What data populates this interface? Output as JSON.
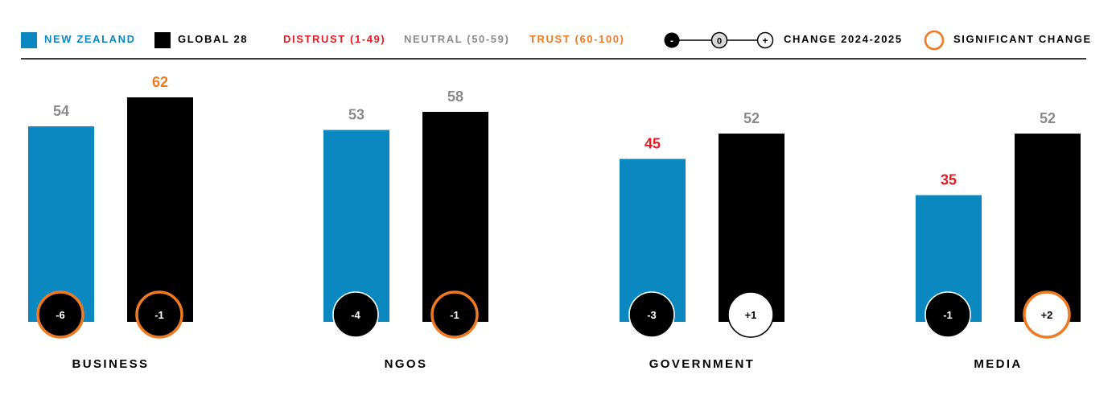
{
  "legend": {
    "new_zealand": "NEW ZEALAND",
    "global": "GLOBAL 28",
    "distrust": "DISTRUST (1-49)",
    "neutral": "NEUTRAL (50-59)",
    "trust": "TRUST (60-100)",
    "minus_symbol": "-",
    "zero_symbol": "0",
    "plus_symbol": "+",
    "change": "CHANGE 2024-2025",
    "significant": "SIGNIFICANT CHANGE"
  },
  "colors": {
    "new_zealand": "#0a88bf",
    "global": "#000000",
    "distrust": "#e31b23",
    "neutral": "#8a8a8a",
    "trust": "#f07a22",
    "significant_ring": "#f07a22"
  },
  "chart_data": {
    "type": "bar",
    "categories": [
      "BUSINESS",
      "NGOS",
      "GOVERNMENT",
      "MEDIA"
    ],
    "series": [
      {
        "name": "NEW ZEALAND",
        "values": [
          54,
          53,
          45,
          35
        ],
        "change": [
          "-6",
          "-4",
          "-3",
          "-1"
        ],
        "significant": [
          true,
          false,
          false,
          false
        ]
      },
      {
        "name": "GLOBAL 28",
        "values": [
          62,
          58,
          52,
          52
        ],
        "change": [
          "-1",
          "-1",
          "+1",
          "+2"
        ],
        "significant": [
          true,
          true,
          false,
          true
        ]
      }
    ],
    "ylim": [
      0,
      100
    ],
    "grid": false,
    "legend_position": "top"
  }
}
